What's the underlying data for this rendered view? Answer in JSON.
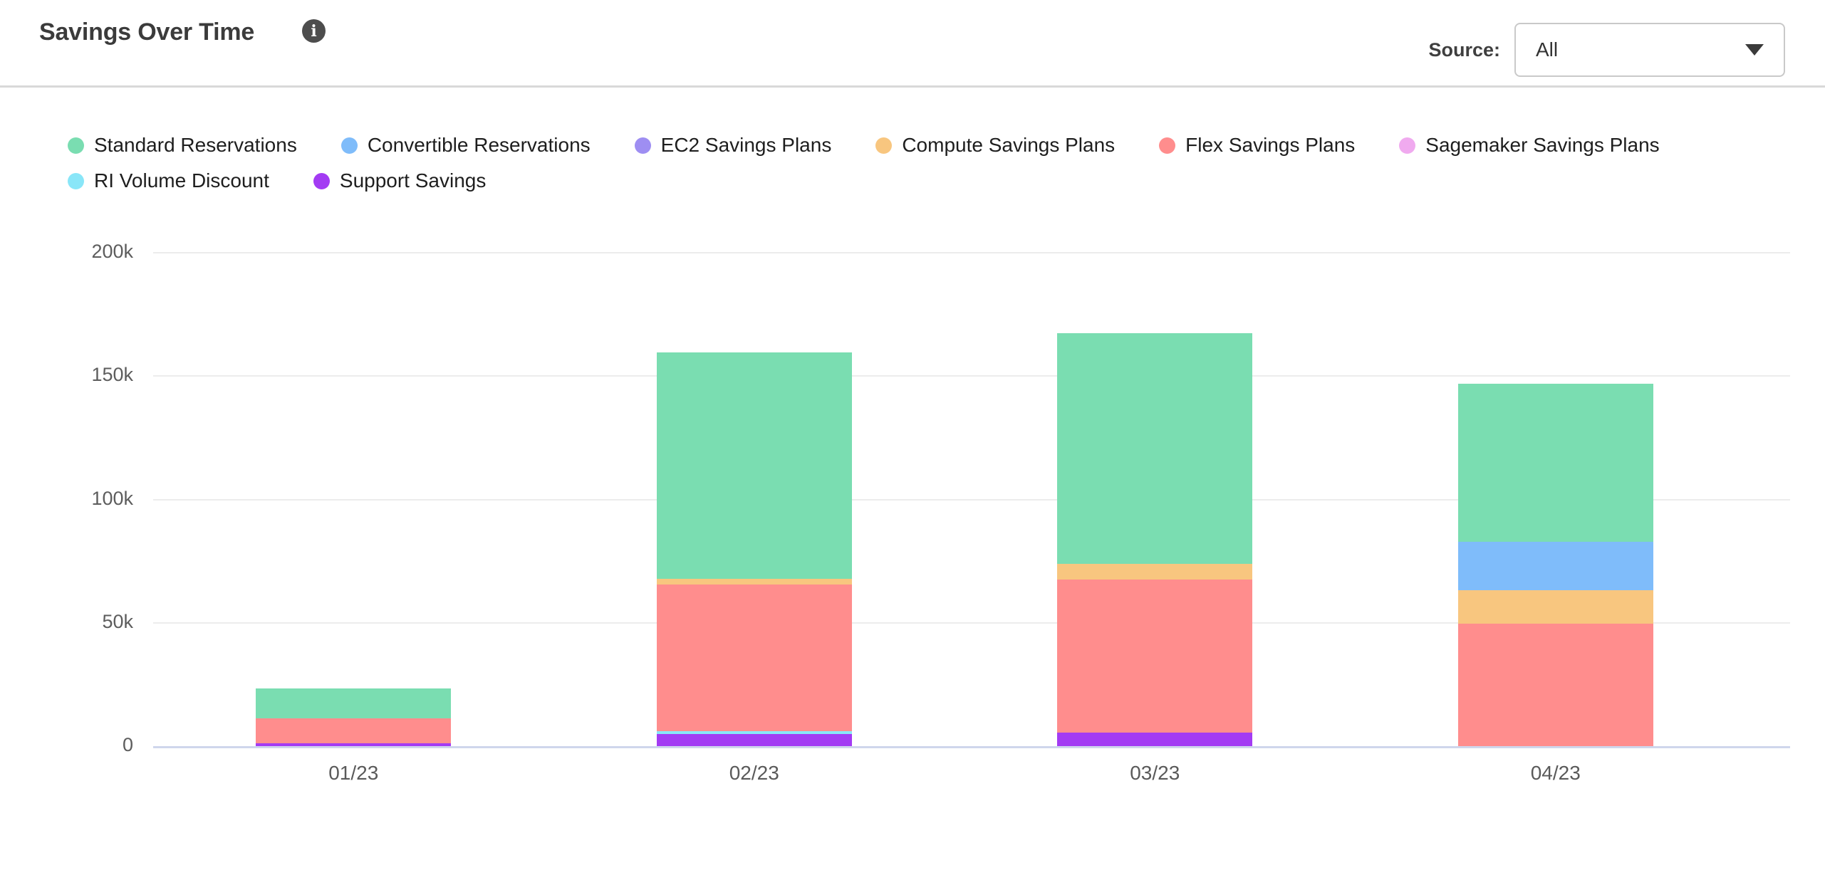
{
  "header": {
    "title": "Savings Over Time",
    "info_icon": "i",
    "source_label": "Source:",
    "source_value": "All"
  },
  "chart_data": {
    "type": "bar",
    "stacked": true,
    "title": "Savings Over Time",
    "categories": [
      "01/23",
      "02/23",
      "03/23",
      "04/23"
    ],
    "series": [
      {
        "name": "Standard Reservations",
        "color": "#7ADDB1",
        "values": [
          12100,
          91600,
          93500,
          64200
        ]
      },
      {
        "name": "Convertible Reservations",
        "color": "#7FBCFA",
        "values": [
          0,
          0,
          0,
          19400
        ]
      },
      {
        "name": "EC2 Savings Plans",
        "color": "#9E8EF2",
        "values": [
          0,
          0,
          0,
          0
        ]
      },
      {
        "name": "Compute Savings Plans",
        "color": "#F8C67F",
        "values": [
          0,
          2300,
          6400,
          13600
        ]
      },
      {
        "name": "Flex Savings Plans",
        "color": "#FF8D8D",
        "values": [
          10100,
          59500,
          62100,
          49700
        ]
      },
      {
        "name": "Sagemaker Savings Plans",
        "color": "#F0AAEF",
        "values": [
          0,
          0,
          0,
          0
        ]
      },
      {
        "name": "RI Volume Discount",
        "color": "#89E6F8",
        "values": [
          0,
          1200,
          0,
          0
        ]
      },
      {
        "name": "Support Savings",
        "color": "#A33BF3",
        "values": [
          1200,
          4900,
          5500,
          0
        ]
      }
    ],
    "stack_order_bottom_to_top": [
      "Support Savings",
      "RI Volume Discount",
      "Sagemaker Savings Plans",
      "Flex Savings Plans",
      "Compute Savings Plans",
      "EC2 Savings Plans",
      "Convertible Reservations",
      "Standard Reservations"
    ],
    "y_axis": {
      "min": 0,
      "max": 200000,
      "ticks": [
        {
          "value": 0,
          "label": "0"
        },
        {
          "value": 50000,
          "label": "50k"
        },
        {
          "value": 100000,
          "label": "100k"
        },
        {
          "value": 150000,
          "label": "150k"
        },
        {
          "value": 200000,
          "label": "200k"
        }
      ]
    },
    "grid": true,
    "legend_position": "top"
  }
}
